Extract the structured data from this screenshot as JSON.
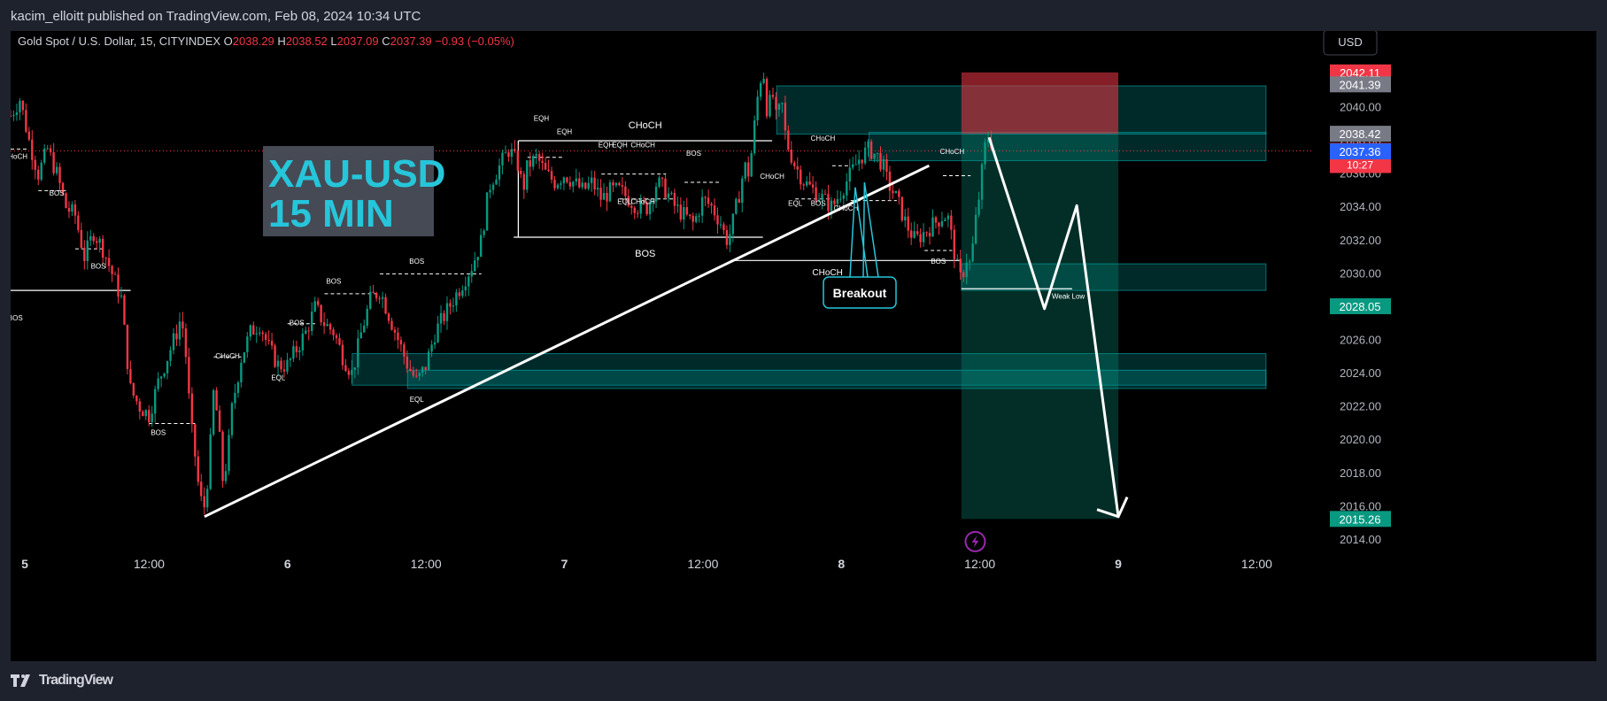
{
  "header": {
    "published": "kacim_elloitt published on TradingView.com, Feb 08, 2024 10:34 UTC"
  },
  "footer": {
    "brand": "TradingView"
  },
  "chart_data": {
    "type": "candlestick",
    "symbol_line": "Gold Spot / U.S. Dollar, 15, CITYINDEX",
    "ohlc": {
      "o_label": "O",
      "o": "2038.29",
      "h_label": "H",
      "h": "2038.52",
      "l_label": "L",
      "l": "2037.09",
      "c_label": "C",
      "c": "2037.39",
      "change": "−0.93 (−0.05%)"
    },
    "currency": "USD",
    "title_box": {
      "line1": "XAU-USD",
      "line2": "15 MIN"
    },
    "y_range": [
      2013.2,
      2044.6
    ],
    "y_ticks": [
      "2014.00",
      "2016.00",
      "2018.00",
      "2020.00",
      "2022.00",
      "2024.00",
      "2026.00",
      "2028.00",
      "2030.00",
      "2032.00",
      "2034.00",
      "2036.00",
      "2038.00",
      "2040.00"
    ],
    "x_ticks": [
      {
        "t": 0,
        "label": "5"
      },
      {
        "t": 1.5,
        "label": "12:00"
      },
      {
        "t": 3,
        "label": "6"
      },
      {
        "t": 4.5,
        "label": "12:00"
      },
      {
        "t": 6,
        "label": "7"
      },
      {
        "t": 7.5,
        "label": "12:00"
      },
      {
        "t": 9,
        "label": "8"
      },
      {
        "t": 10.5,
        "label": "12:00"
      },
      {
        "t": 12,
        "label": "9"
      },
      {
        "t": 13.5,
        "label": "12:00"
      }
    ],
    "price_badges": [
      {
        "value": 2042.11,
        "label": "2042.11",
        "color": "#f23645"
      },
      {
        "value": 2041.39,
        "label": "2041.39",
        "color": "#787b86"
      },
      {
        "value": 2038.42,
        "label": "2038.42",
        "color": "#787b86"
      },
      {
        "value": 2037.39,
        "label": "2037.39",
        "label2": "10:27",
        "color": "#f23645"
      },
      {
        "value": 2037.36,
        "label": "2037.36",
        "color": "#2962ff"
      },
      {
        "value": 2028.05,
        "label": "2028.05",
        "color": "#089981"
      },
      {
        "value": 2015.26,
        "label": "2015.26",
        "color": "#089981"
      }
    ],
    "price_path": [
      [
        0.0,
        2039.5
      ],
      [
        0.1,
        2040.5
      ],
      [
        0.2,
        2038.0
      ],
      [
        0.3,
        2036.0
      ],
      [
        0.4,
        2037.5
      ],
      [
        0.5,
        2036.0
      ],
      [
        0.6,
        2034.0
      ],
      [
        0.7,
        2033.5
      ],
      [
        0.8,
        2031.0
      ],
      [
        0.9,
        2032.5
      ],
      [
        1.0,
        2031.5
      ],
      [
        1.1,
        2030.0
      ],
      [
        1.2,
        2028.5
      ],
      [
        1.25,
        2025.5
      ],
      [
        1.3,
        2023.0
      ],
      [
        1.4,
        2022.0
      ],
      [
        1.5,
        2021.5
      ],
      [
        1.6,
        2023.5
      ],
      [
        1.7,
        2025.0
      ],
      [
        1.8,
        2026.5
      ],
      [
        1.85,
        2027.5
      ],
      [
        1.9,
        2025.0
      ],
      [
        1.95,
        2021.0
      ],
      [
        2.0,
        2019.0
      ],
      [
        2.05,
        2016.5
      ],
      [
        2.1,
        2016.0
      ],
      [
        2.15,
        2018.5
      ],
      [
        2.2,
        2023.0
      ],
      [
        2.25,
        2021.0
      ],
      [
        2.3,
        2017.5
      ],
      [
        2.35,
        2019.0
      ],
      [
        2.4,
        2022.0
      ],
      [
        2.5,
        2025.0
      ],
      [
        2.6,
        2026.5
      ],
      [
        2.7,
        2027.0
      ],
      [
        2.8,
        2025.5
      ],
      [
        2.9,
        2024.5
      ],
      [
        3.0,
        2024.5
      ],
      [
        3.1,
        2025.5
      ],
      [
        3.2,
        2026.5
      ],
      [
        3.3,
        2028.0
      ],
      [
        3.4,
        2027.0
      ],
      [
        3.5,
        2026.5
      ],
      [
        3.6,
        2025.0
      ],
      [
        3.7,
        2024.0
      ],
      [
        3.8,
        2026.5
      ],
      [
        3.9,
        2028.5
      ],
      [
        4.0,
        2029.0
      ],
      [
        4.1,
        2027.5
      ],
      [
        4.2,
        2026.0
      ],
      [
        4.3,
        2024.5
      ],
      [
        4.4,
        2023.5
      ],
      [
        4.5,
        2024.5
      ],
      [
        4.6,
        2026.5
      ],
      [
        4.7,
        2027.5
      ],
      [
        4.8,
        2028.5
      ],
      [
        4.9,
        2029.5
      ],
      [
        5.0,
        2030.5
      ],
      [
        5.1,
        2032.0
      ],
      [
        5.15,
        2034.0
      ],
      [
        5.2,
        2035.5
      ],
      [
        5.3,
        2036.5
      ],
      [
        5.4,
        2037.5
      ],
      [
        5.5,
        2036.5
      ],
      [
        5.55,
        2035.0
      ],
      [
        5.6,
        2036.5
      ],
      [
        5.7,
        2037.0
      ],
      [
        5.8,
        2036.0
      ],
      [
        5.9,
        2035.5
      ],
      [
        6.0,
        2036.0
      ],
      [
        6.1,
        2035.5
      ],
      [
        6.2,
        2035.0
      ],
      [
        6.3,
        2035.5
      ],
      [
        6.4,
        2034.5
      ],
      [
        6.5,
        2035.0
      ],
      [
        6.6,
        2035.0
      ],
      [
        6.7,
        2034.5
      ],
      [
        6.8,
        2034.0
      ],
      [
        6.9,
        2034.0
      ],
      [
        7.0,
        2035.5
      ],
      [
        7.1,
        2035.0
      ],
      [
        7.2,
        2034.0
      ],
      [
        7.3,
        2033.5
      ],
      [
        7.4,
        2033.0
      ],
      [
        7.5,
        2034.5
      ],
      [
        7.6,
        2034.0
      ],
      [
        7.7,
        2033.0
      ],
      [
        7.75,
        2032.0
      ],
      [
        7.8,
        2032.5
      ],
      [
        7.9,
        2035.0
      ],
      [
        7.95,
        2036.5
      ],
      [
        8.0,
        2036.0
      ],
      [
        8.05,
        2038.5
      ],
      [
        8.1,
        2041.0
      ],
      [
        8.15,
        2042.5
      ],
      [
        8.2,
        2039.5
      ],
      [
        8.25,
        2041.0
      ],
      [
        8.3,
        2039.0
      ],
      [
        8.35,
        2040.5
      ],
      [
        8.4,
        2038.0
      ],
      [
        8.5,
        2036.5
      ],
      [
        8.6,
        2035.5
      ],
      [
        8.7,
        2035.0
      ],
      [
        8.8,
        2034.5
      ],
      [
        8.9,
        2034.0
      ],
      [
        9.0,
        2035.0
      ],
      [
        9.1,
        2036.0
      ],
      [
        9.2,
        2037.0
      ],
      [
        9.3,
        2037.5
      ],
      [
        9.4,
        2037.0
      ],
      [
        9.45,
        2036.5
      ],
      [
        9.5,
        2035.5
      ],
      [
        9.6,
        2034.5
      ],
      [
        9.7,
        2033.0
      ],
      [
        9.8,
        2032.0
      ],
      [
        9.9,
        2032.5
      ],
      [
        10.0,
        2033.0
      ],
      [
        10.1,
        2033.5
      ],
      [
        10.15,
        2033.5
      ],
      [
        10.2,
        2032.0
      ],
      [
        10.25,
        2030.5
      ],
      [
        10.3,
        2029.5
      ],
      [
        10.35,
        2031.0
      ],
      [
        10.4,
        2030.5
      ],
      [
        10.45,
        2033.0
      ],
      [
        10.5,
        2035.0
      ],
      [
        10.55,
        2037.5
      ],
      [
        10.6,
        2038.4
      ],
      [
        10.65,
        2037.4
      ]
    ],
    "trend_line": {
      "from": [
        2.1,
        2015.4
      ],
      "to": [
        9.95,
        2036.5
      ]
    },
    "consolidation_box": {
      "t1": 5.5,
      "t2": 8.25,
      "top": 2038.0,
      "bottom": 2032.2,
      "top_label": "CHoCH",
      "bottom_label": "BOS"
    },
    "zones": [
      {
        "t1": 8.3,
        "t2": 13.6,
        "top": 2041.3,
        "bottom": 2038.4,
        "label": "upper-supply-zone"
      },
      {
        "t1": 9.3,
        "t2": 13.6,
        "top": 2038.5,
        "bottom": 2036.8,
        "label": "inner-supply-zone"
      },
      {
        "t1": 10.3,
        "t2": 13.6,
        "top": 2030.6,
        "bottom": 2029.0,
        "label": "demand-zone"
      },
      {
        "t1": 3.7,
        "t2": 13.6,
        "top": 2025.2,
        "bottom": 2023.3,
        "label": "lower-demand-zone"
      },
      {
        "t1": 4.3,
        "t2": 13.6,
        "top": 2024.2,
        "bottom": 2023.1,
        "label": "lower-demand-zone-2"
      }
    ],
    "position_tool": {
      "t1": 10.3,
      "t2": 12.0,
      "stop": 2042.11,
      "entry": 2038.42,
      "target": 2015.26
    },
    "projection_path": [
      [
        10.6,
        2038.2
      ],
      [
        11.2,
        2027.9
      ],
      [
        11.55,
        2034.1
      ],
      [
        12.0,
        2015.4
      ]
    ],
    "breakout_label": "Breakout",
    "weak_low_label": "Weak Low",
    "structure_labels": [
      {
        "t": 0.5,
        "p": 2034.7,
        "text": "BOS"
      },
      {
        "t": 0.95,
        "p": 2030.3,
        "text": "BOS"
      },
      {
        "t": 0.05,
        "p": 2027.2,
        "text": "BOS"
      },
      {
        "t": 0.05,
        "p": 2036.9,
        "text": "CHoCH"
      },
      {
        "t": 1.6,
        "p": 2020.3,
        "text": "BOS"
      },
      {
        "t": 2.35,
        "p": 2024.9,
        "text": "CHoCH"
      },
      {
        "t": 2.9,
        "p": 2023.6,
        "text": "EQL"
      },
      {
        "t": 3.1,
        "p": 2026.9,
        "text": "BOS"
      },
      {
        "t": 3.5,
        "p": 2029.4,
        "text": "BOS"
      },
      {
        "t": 4.4,
        "p": 2030.6,
        "text": "BOS"
      },
      {
        "t": 4.4,
        "p": 2022.3,
        "text": "EQL"
      },
      {
        "t": 5.75,
        "p": 2039.2,
        "text": "EQH"
      },
      {
        "t": 6.0,
        "p": 2038.4,
        "text": "EQH"
      },
      {
        "t": 6.45,
        "p": 2037.6,
        "text": "EQH"
      },
      {
        "t": 6.6,
        "p": 2037.6,
        "text": "EQH"
      },
      {
        "t": 6.85,
        "p": 2037.6,
        "text": "CHoCH"
      },
      {
        "t": 6.65,
        "p": 2034.2,
        "text": "EQL"
      },
      {
        "t": 6.85,
        "p": 2034.2,
        "text": "CHoCH"
      },
      {
        "t": 7.4,
        "p": 2037.1,
        "text": "BOS"
      },
      {
        "t": 8.25,
        "p": 2035.7,
        "text": "CHoCH"
      },
      {
        "t": 8.5,
        "p": 2034.1,
        "text": "EQL"
      },
      {
        "t": 8.75,
        "p": 2034.1,
        "text": "BOS"
      },
      {
        "t": 8.8,
        "p": 2038.0,
        "text": "CHoCH"
      },
      {
        "t": 9.05,
        "p": 2033.8,
        "text": "CHoCH"
      },
      {
        "t": 10.05,
        "p": 2030.6,
        "text": "BOS"
      },
      {
        "t": 10.2,
        "p": 2037.2,
        "text": "CHoCH"
      }
    ],
    "choch_small": {
      "t": 8.85,
      "p": 2029.9,
      "text": "CHoCH"
    }
  }
}
